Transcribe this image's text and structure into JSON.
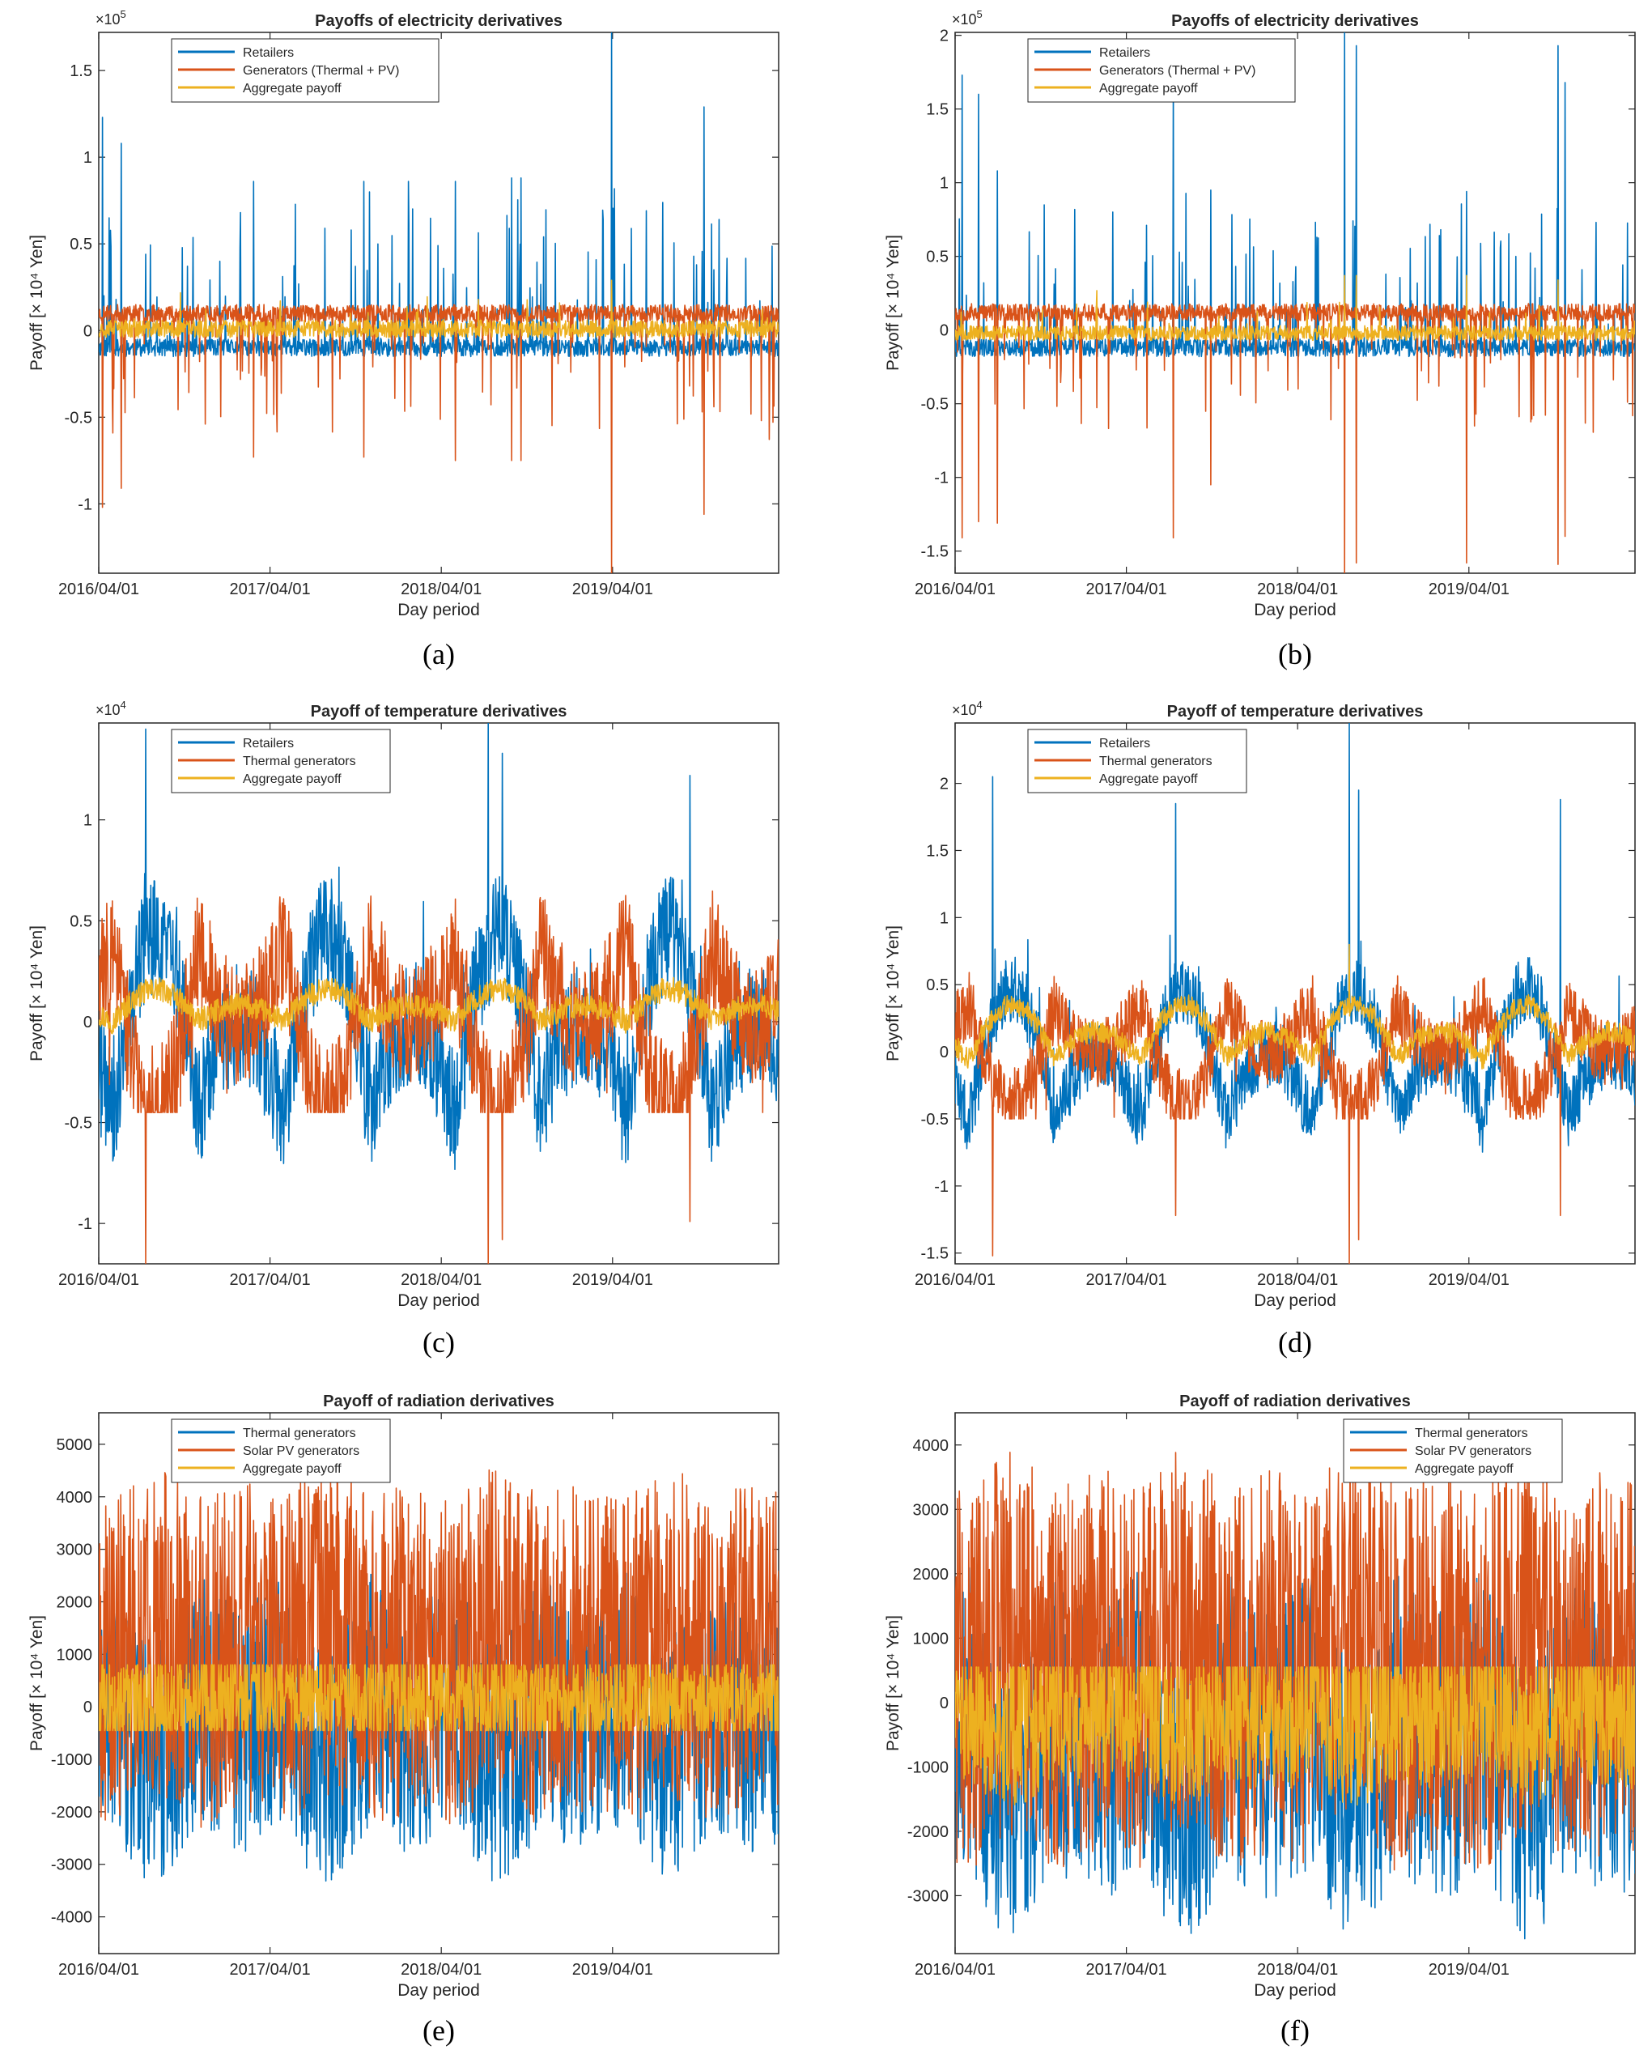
{
  "figure": {
    "colors": {
      "blue": "#0072BD",
      "orange": "#D95319",
      "yellow": "#EDB120",
      "axis": "#262626",
      "background": "#ffffff"
    },
    "shared_x": {
      "label": "Day period",
      "n_days": 1450,
      "start_date": "2016/04/01",
      "ticks": [
        "2016/04/01",
        "2017/04/01",
        "2018/04/01",
        "2019/04/01"
      ],
      "tick_days": [
        0,
        365,
        730,
        1095
      ]
    }
  },
  "chart_data": [
    {
      "panel": "a",
      "caption": "(a)",
      "type": "line",
      "title": "Payoffs of electricity derivatives",
      "xlabel": "Day period",
      "ylabel": "Payoff [× 10⁴ Yen]",
      "multiplier": "×10",
      "multiplier_exp": "5",
      "ylim": [
        -1.4,
        1.72
      ],
      "yticks": [
        -1,
        -0.5,
        0,
        0.5,
        1,
        1.5
      ],
      "ytick_labels": [
        "-1",
        "-0.5",
        "0",
        "0.5",
        "1",
        "1.5"
      ],
      "legend": {
        "placement": "top-left",
        "entries": [
          "Retailers",
          "Generators (Thermal + PV)",
          "Aggregate payoff"
        ]
      },
      "series": [
        {
          "name": "Retailers",
          "color": "#0072BD",
          "base": -0.1,
          "amplitude": 0.05,
          "seasonal": 0,
          "seasonal_offset": 0,
          "spike_rate": 0.06,
          "spike_scale": 0.9,
          "spike_sign": 1,
          "seed": 11,
          "notable_spikes": [
            [
              8,
              1.23
            ],
            [
              22,
              0.65
            ],
            [
              48,
              1.08
            ],
            [
              330,
              0.86
            ],
            [
              565,
              0.86
            ],
            [
              660,
              0.86
            ],
            [
              760,
              0.86
            ],
            [
              880,
              0.88
            ],
            [
              900,
              0.88
            ],
            [
              1093,
              1.72
            ],
            [
              1290,
              1.29
            ]
          ]
        },
        {
          "name": "Generators (Thermal + PV)",
          "color": "#D95319",
          "base": 0.1,
          "amplitude": 0.05,
          "seasonal": 0,
          "seasonal_offset": 0,
          "spike_rate": 0.06,
          "spike_scale": 0.7,
          "spike_sign": -1,
          "seed": 23,
          "notable_spikes": [
            [
              8,
              -1.02
            ],
            [
              48,
              -0.91
            ],
            [
              330,
              -0.73
            ],
            [
              565,
              -0.73
            ],
            [
              760,
              -0.75
            ],
            [
              880,
              -0.75
            ],
            [
              900,
              -0.75
            ],
            [
              1093,
              -1.4
            ],
            [
              1290,
              -1.06
            ]
          ]
        },
        {
          "name": "Aggregate payoff",
          "color": "#EDB120",
          "base": 0.01,
          "amplitude": 0.05,
          "seasonal": 0,
          "seasonal_offset": 0,
          "spike_rate": 0.02,
          "spike_scale": 0.2,
          "spike_sign": 1,
          "seed": 37,
          "notable_spikes": [
            [
              1093,
              0.29
            ]
          ]
        }
      ]
    },
    {
      "panel": "b",
      "caption": "(b)",
      "type": "line",
      "title": "Payoffs of electricity derivatives",
      "xlabel": "Day period",
      "ylabel": "Payoff [× 10⁴ Yen]",
      "multiplier": "×10",
      "multiplier_exp": "5",
      "ylim": [
        -1.65,
        2.02
      ],
      "yticks": [
        -1.5,
        -1,
        -0.5,
        0,
        0.5,
        1,
        1.5,
        2
      ],
      "ytick_labels": [
        "-1.5",
        "-1",
        "-0.5",
        "0",
        "0.5",
        "1",
        "1.5",
        "2"
      ],
      "legend": {
        "placement": "top-left",
        "entries": [
          "Retailers",
          "Generators (Thermal + PV)",
          "Aggregate payoff"
        ]
      },
      "series": [
        {
          "name": "Retailers",
          "color": "#0072BD",
          "base": -0.12,
          "amplitude": 0.06,
          "seasonal": 0,
          "seasonal_offset": 0,
          "spike_rate": 0.07,
          "spike_scale": 1.0,
          "spike_sign": 1,
          "seed": 41,
          "notable_spikes": [
            [
              15,
              1.73
            ],
            [
              50,
              1.6
            ],
            [
              90,
              1.08
            ],
            [
              190,
              0.85
            ],
            [
              465,
              1.73
            ],
            [
              545,
              0.95
            ],
            [
              830,
              2.02
            ],
            [
              855,
              1.93
            ],
            [
              1090,
              0.94
            ],
            [
              1285,
              1.93
            ],
            [
              1300,
              1.68
            ]
          ]
        },
        {
          "name": "Generators (Thermal + PV)",
          "color": "#D95319",
          "base": 0.12,
          "amplitude": 0.06,
          "seasonal": 0,
          "seasonal_offset": 0,
          "spike_rate": 0.07,
          "spike_scale": 0.8,
          "spike_sign": -1,
          "seed": 53,
          "notable_spikes": [
            [
              15,
              -1.41
            ],
            [
              50,
              -1.3
            ],
            [
              90,
              -1.31
            ],
            [
              465,
              -1.41
            ],
            [
              545,
              -1.05
            ],
            [
              830,
              -1.65
            ],
            [
              855,
              -1.58
            ],
            [
              1090,
              -1.58
            ],
            [
              1285,
              -1.59
            ],
            [
              1300,
              -1.4
            ]
          ]
        },
        {
          "name": "Aggregate payoff",
          "color": "#EDB120",
          "base": -0.02,
          "amplitude": 0.05,
          "seasonal": 0,
          "seasonal_offset": 0,
          "spike_rate": 0.02,
          "spike_scale": 0.25,
          "spike_sign": 1,
          "seed": 67,
          "notable_spikes": [
            [
              830,
              0.37
            ],
            [
              855,
              0.37
            ],
            [
              1090,
              0.37
            ],
            [
              1285,
              0.34
            ]
          ]
        }
      ]
    },
    {
      "panel": "c",
      "caption": "(c)",
      "type": "line",
      "title": "Payoff of temperature derivatives",
      "xlabel": "Day period",
      "ylabel": "Payoff [× 10⁴ Yen]",
      "multiplier": "×10",
      "multiplier_exp": "4",
      "ylim": [
        -1.2,
        1.48
      ],
      "yticks": [
        -1,
        -0.5,
        0,
        0.5,
        1
      ],
      "ytick_labels": [
        "-1",
        "-0.5",
        "0",
        "0.5",
        "1"
      ],
      "legend": {
        "placement": "top-left",
        "entries": [
          "Retailers",
          "Thermal generators",
          "Aggregate payoff"
        ]
      },
      "series": [
        {
          "name": "Retailers",
          "color": "#0072BD",
          "base": -0.45,
          "amplitude": 0.3,
          "seasonal": 1.1,
          "seasonal_offset": 0,
          "spike_rate": 0.03,
          "spike_scale": 0.4,
          "spike_sign": 1,
          "seed": 71,
          "cap": 0.38,
          "notable_spikes": [
            [
              100,
              1.45
            ],
            [
              830,
              1.48
            ],
            [
              860,
              1.33
            ],
            [
              1260,
              1.22
            ]
          ]
        },
        {
          "name": "Thermal generators",
          "color": "#D95319",
          "base": 0.38,
          "amplitude": 0.3,
          "seasonal": -1.0,
          "seasonal_offset": 0,
          "spike_rate": 0.03,
          "spike_scale": 0.4,
          "spike_sign": -1,
          "seed": 83,
          "floor": -0.45,
          "notable_spikes": [
            [
              100,
              -1.2
            ],
            [
              830,
              -1.2
            ],
            [
              860,
              -1.08
            ],
            [
              1260,
              -0.99
            ]
          ]
        },
        {
          "name": "Aggregate payoff",
          "color": "#EDB120",
          "base": -0.05,
          "amplitude": 0.06,
          "seasonal": 0.2,
          "seasonal_offset": 0.05,
          "spike_rate": 0.0,
          "spike_scale": 0,
          "spike_sign": 1,
          "seed": 97,
          "notable_spikes": []
        }
      ]
    },
    {
      "panel": "d",
      "caption": "(d)",
      "type": "line",
      "title": "Payoff of temperature derivatives",
      "xlabel": "Day period",
      "ylabel": "Payoff [× 10⁴ Yen]",
      "multiplier": "×10",
      "multiplier_exp": "4",
      "ylim": [
        -1.58,
        2.45
      ],
      "yticks": [
        -1.5,
        -1,
        -0.5,
        0,
        0.5,
        1,
        1.5,
        2
      ],
      "ytick_labels": [
        "-1.5",
        "-1",
        "-0.5",
        "0",
        "0.5",
        "1",
        "1.5",
        "2"
      ],
      "legend": {
        "placement": "top-left",
        "entries": [
          "Retailers",
          "Thermal generators",
          "Aggregate payoff"
        ]
      },
      "series": [
        {
          "name": "Retailers",
          "color": "#0072BD",
          "base": -0.5,
          "amplitude": 0.25,
          "seasonal": 1.2,
          "seasonal_offset": 0,
          "spike_rate": 0.03,
          "spike_scale": 0.5,
          "spike_sign": 1,
          "seed": 101,
          "cap": 0.35,
          "notable_spikes": [
            [
              80,
              2.05
            ],
            [
              470,
              1.85
            ],
            [
              840,
              2.45
            ],
            [
              860,
              1.95
            ],
            [
              1290,
              1.88
            ]
          ]
        },
        {
          "name": "Thermal generators",
          "color": "#D95319",
          "base": 0.35,
          "amplitude": 0.25,
          "seasonal": -0.9,
          "seasonal_offset": 0,
          "spike_rate": 0.03,
          "spike_scale": 0.4,
          "spike_sign": -1,
          "seed": 113,
          "floor": -0.5,
          "notable_spikes": [
            [
              80,
              -1.52
            ],
            [
              470,
              -1.22
            ],
            [
              840,
              -1.58
            ],
            [
              860,
              -1.4
            ],
            [
              1290,
              -1.22
            ]
          ]
        },
        {
          "name": "Aggregate payoff",
          "color": "#EDB120",
          "base": -0.1,
          "amplitude": 0.08,
          "seasonal": 0.5,
          "seasonal_offset": 0.05,
          "spike_rate": 0.0,
          "spike_scale": 0,
          "spike_sign": 1,
          "seed": 127,
          "notable_spikes": [
            [
              840,
              0.8
            ]
          ]
        }
      ]
    },
    {
      "panel": "e",
      "caption": "(e)",
      "type": "line",
      "title": "Payoff of radiation derivatives",
      "xlabel": "Day period",
      "ylabel": "Payoff [× 10⁴ Yen]",
      "multiplier": "",
      "multiplier_exp": "",
      "ylim": [
        -4700,
        5600
      ],
      "yticks": [
        -4000,
        -3000,
        -2000,
        -1000,
        0,
        1000,
        2000,
        3000,
        4000,
        5000
      ],
      "ytick_labels": [
        "-4000",
        "-3000",
        "-2000",
        "-1000",
        "0",
        "1000",
        "2000",
        "3000",
        "4000",
        "5000"
      ],
      "legend": {
        "placement": "top-left",
        "entries": [
          "Thermal generators",
          "Solar PV generators",
          "Aggregate payoff"
        ]
      },
      "series": [
        {
          "name": "Thermal generators",
          "color": "#0072BD",
          "base": 200,
          "amplitude": 1500,
          "seasonal": -1500,
          "seasonal_offset": 0,
          "band": 2400,
          "spike_rate": 0.0,
          "spike_scale": 0,
          "spike_sign": 1,
          "seed": 131,
          "cap": 2800,
          "floor": -4700,
          "notable_spikes": []
        },
        {
          "name": "Solar PV generators",
          "color": "#D95319",
          "base": 800,
          "amplitude": 2200,
          "seasonal": 700,
          "seasonal_offset": 0,
          "band": 3200,
          "spike_rate": 0.0,
          "spike_scale": 0,
          "spike_sign": 1,
          "seed": 149,
          "cap": 5600,
          "floor": -3400,
          "notable_spikes": []
        },
        {
          "name": "Aggregate payoff",
          "color": "#EDB120",
          "base": 100,
          "amplitude": 450,
          "seasonal": 0,
          "seasonal_offset": 0,
          "band": 900,
          "spike_rate": 0.0,
          "spike_scale": 0,
          "spike_sign": 1,
          "seed": 163,
          "cap": 800,
          "floor": -450,
          "notable_spikes": []
        }
      ]
    },
    {
      "panel": "f",
      "caption": "(f)",
      "type": "line",
      "title": "Payoff of radiation derivatives",
      "xlabel": "Day period",
      "ylabel": "Payoff [× 10⁴ Yen]",
      "multiplier": "",
      "multiplier_exp": "",
      "ylim": [
        -3900,
        4500
      ],
      "yticks": [
        -3000,
        -2000,
        -1000,
        0,
        1000,
        2000,
        3000,
        4000
      ],
      "ytick_labels": [
        "-3000",
        "-2000",
        "-1000",
        "0",
        "1000",
        "2000",
        "3000",
        "4000"
      ],
      "legend": {
        "placement": "top-right",
        "entries": [
          "Thermal generators",
          "Solar PV generators",
          "Aggregate payoff"
        ]
      },
      "series": [
        {
          "name": "Thermal generators",
          "color": "#0072BD",
          "base": -200,
          "amplitude": 1400,
          "seasonal": -1500,
          "seasonal_offset": 0,
          "band": 2300,
          "spike_rate": 0.0,
          "spike_scale": 0,
          "spike_sign": 1,
          "seed": 173,
          "cap": 2500,
          "floor": -3900,
          "notable_spikes": []
        },
        {
          "name": "Solar PV generators",
          "color": "#D95319",
          "base": 300,
          "amplitude": 2000,
          "seasonal": 800,
          "seasonal_offset": 0,
          "band": 3000,
          "spike_rate": 0.0,
          "spike_scale": 0,
          "spike_sign": 1,
          "seed": 181,
          "cap": 4400,
          "floor": -3800,
          "notable_spikes": []
        },
        {
          "name": "Aggregate payoff",
          "color": "#EDB120",
          "base": 0,
          "amplitude": 500,
          "seasonal": -500,
          "seasonal_offset": 0,
          "band": 1200,
          "spike_rate": 0.0,
          "spike_scale": 0,
          "spike_sign": 1,
          "seed": 191,
          "cap": 550,
          "floor": -2000,
          "notable_spikes": []
        }
      ]
    }
  ]
}
